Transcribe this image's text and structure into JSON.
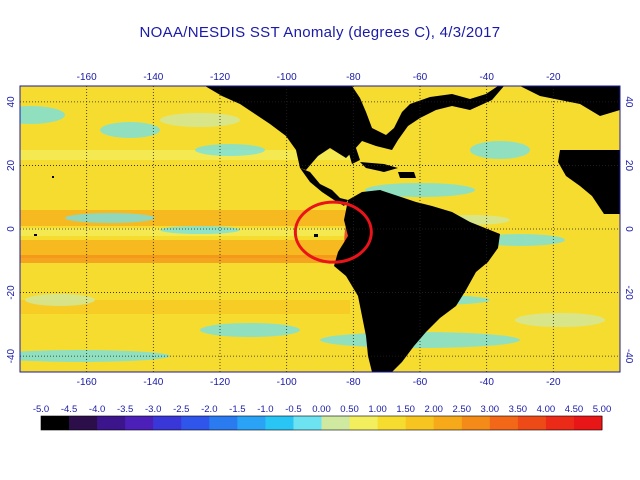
{
  "title": "NOAA/NESDIS SST Anomaly (degrees C), 4/3/2017",
  "map": {
    "lon_labels": [
      "-160",
      "-140",
      "-120",
      "-100",
      "-80",
      "-60",
      "-40",
      "-20"
    ],
    "lat_labels": [
      "40",
      "20",
      "0",
      "-20",
      "-40"
    ],
    "lon_values": [
      -160,
      -140,
      -120,
      -100,
      -80,
      -60,
      -40,
      -20
    ],
    "lat_values": [
      40,
      20,
      0,
      -20,
      -40
    ],
    "lon_range": [
      -180,
      0
    ],
    "lat_range": [
      -45,
      45
    ],
    "highlight": {
      "shape": "circle",
      "color": "#e8141a",
      "center_lon": -86,
      "center_lat": -1
    },
    "colors": {
      "land": "#000000",
      "ocean": "#f7dc30",
      "grid": "#222222",
      "axis": "#1a1aa8"
    }
  },
  "colorbar": {
    "ticks": [
      "-5.0",
      "-4.5",
      "-4.0",
      "-3.5",
      "-3.0",
      "-2.5",
      "-2.0",
      "-1.5",
      "-1.0",
      "-0.5",
      "0.00",
      "0.50",
      "1.00",
      "1.50",
      "2.00",
      "2.50",
      "3.00",
      "3.50",
      "4.00",
      "4.50",
      "5.00"
    ],
    "colors": [
      "#000000",
      "#2c0f4a",
      "#3c148c",
      "#4b1fb8",
      "#3a37d8",
      "#2f55ea",
      "#2a7af0",
      "#2aa2f5",
      "#28c5f5",
      "#6de2f0",
      "#cfe9a0",
      "#f2ee5e",
      "#f7dc30",
      "#f7c520",
      "#f6aa1a",
      "#f48b18",
      "#f26818",
      "#ee4a18",
      "#ec2a18",
      "#e81616"
    ]
  }
}
